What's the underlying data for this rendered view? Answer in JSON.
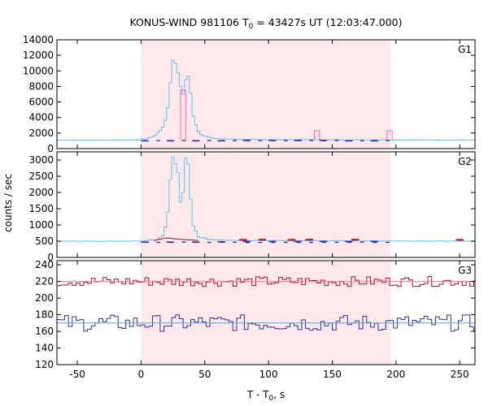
{
  "chart_data": {
    "type": "line",
    "title": {
      "main": "KONUS-WIND 981106 T",
      "sub": "0",
      "rest": " = 43427s UT (12:03:47.000)"
    },
    "xlabel": {
      "main": "T - T",
      "sub": "0",
      "rest": ", s"
    },
    "ylabel": "counts / sec",
    "xlim": [
      -66,
      262
    ],
    "xticks": [
      -50,
      0,
      50,
      100,
      150,
      200,
      250
    ],
    "highlight_interval": [
      0,
      196
    ],
    "colors": {
      "burst": "#6fc3f0",
      "background": "#3030a8",
      "bg_pink": "#ff60b0",
      "bg_red": "#b01020",
      "shade": "#fde8ea",
      "ref_pink": "#f07aa8",
      "ref_blue": "#50a8e0"
    },
    "panels": [
      {
        "name": "G1",
        "ylim": [
          0,
          14000
        ],
        "yticks": [
          0,
          2000,
          4000,
          6000,
          8000,
          10000,
          12000,
          14000
        ],
        "baseline": 1100,
        "burst_profile": [
          [
            -66,
            1100
          ],
          [
            -10,
            1100
          ],
          [
            0,
            1150
          ],
          [
            5,
            1350
          ],
          [
            10,
            1600
          ],
          [
            14,
            2100
          ],
          [
            18,
            3000
          ],
          [
            21,
            5200
          ],
          [
            23,
            8500
          ],
          [
            25,
            11300
          ],
          [
            27,
            11000
          ],
          [
            29,
            9800
          ],
          [
            31,
            8000
          ],
          [
            33,
            7000
          ],
          [
            35,
            8800
          ],
          [
            37,
            9300
          ],
          [
            39,
            7200
          ],
          [
            41,
            4200
          ],
          [
            44,
            2500
          ],
          [
            48,
            1700
          ],
          [
            55,
            1350
          ],
          [
            70,
            1200
          ],
          [
            100,
            1150
          ],
          [
            262,
            1100
          ]
        ],
        "background_segments": [
          [
            0,
            1000
          ],
          [
            20,
            1000
          ],
          [
            40,
            1000
          ],
          [
            60,
            1000
          ],
          [
            80,
            1050
          ],
          [
            100,
            1050
          ],
          [
            120,
            1050
          ],
          [
            140,
            1050
          ],
          [
            160,
            1000
          ],
          [
            180,
            1000
          ]
        ],
        "spikes": [
          {
            "x": 138,
            "y": 2300
          },
          {
            "x": 195,
            "y": 2300
          },
          {
            "x": 33,
            "y": 7500
          }
        ]
      },
      {
        "name": "G2",
        "ylim": [
          0,
          3250
        ],
        "yticks": [
          0,
          500,
          1000,
          1500,
          2000,
          2500,
          3000
        ],
        "baseline": 500,
        "burst_profile": [
          [
            -66,
            500
          ],
          [
            -10,
            500
          ],
          [
            0,
            510
          ],
          [
            8,
            530
          ],
          [
            14,
            580
          ],
          [
            18,
            700
          ],
          [
            21,
            1400
          ],
          [
            23,
            2400
          ],
          [
            25,
            3100
          ],
          [
            27,
            2900
          ],
          [
            29,
            2600
          ],
          [
            31,
            1700
          ],
          [
            33,
            2000
          ],
          [
            35,
            3050
          ],
          [
            37,
            2900
          ],
          [
            39,
            1800
          ],
          [
            41,
            1000
          ],
          [
            45,
            650
          ],
          [
            52,
            560
          ],
          [
            70,
            520
          ],
          [
            262,
            500
          ]
        ],
        "background_segments": [
          [
            0,
            470
          ],
          [
            20,
            470
          ],
          [
            40,
            470
          ],
          [
            60,
            480
          ],
          [
            80,
            490
          ],
          [
            100,
            490
          ],
          [
            120,
            490
          ],
          [
            140,
            490
          ],
          [
            160,
            490
          ],
          [
            180,
            490
          ]
        ],
        "red_marks": [
          {
            "x": 80,
            "y": 540
          },
          {
            "x": 95,
            "y": 545
          },
          {
            "x": 118,
            "y": 540
          },
          {
            "x": 132,
            "y": 545
          },
          {
            "x": 168,
            "y": 545
          },
          {
            "x": 250,
            "y": 540
          }
        ]
      },
      {
        "name": "G3",
        "ylim": [
          120,
          245
        ],
        "yticks": [
          120,
          140,
          160,
          180,
          200,
          220,
          240
        ],
        "series": [
          {
            "name": "upper",
            "mean": 220,
            "amplitude": 6,
            "color_key": "bg_red",
            "ref_color_key": "ref_pink"
          },
          {
            "name": "lower",
            "mean": 170,
            "amplitude": 10,
            "color_key": "background",
            "ref_color_key": "ref_blue"
          }
        ]
      }
    ]
  }
}
